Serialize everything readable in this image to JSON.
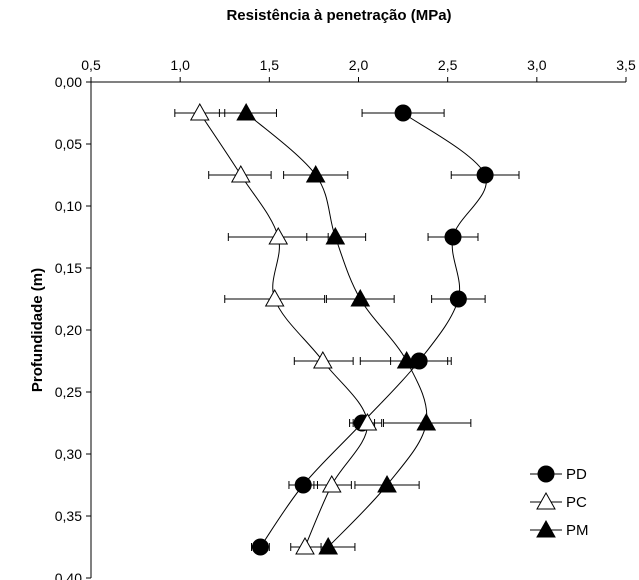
{
  "chart_data": {
    "type": "scatter",
    "title": "",
    "xlabel": "Resistência à penetração (MPa)",
    "ylabel": "Profundidade (m)",
    "xlim": [
      0.5,
      3.5
    ],
    "ylim": [
      0.0,
      0.4
    ],
    "x_ticks": [
      "0,5",
      "1,0",
      "1,5",
      "2,0",
      "2,5",
      "3,0",
      "3,5"
    ],
    "y_ticks": [
      "0,00",
      "0,05",
      "0,10",
      "0,15",
      "0,20",
      "0,25",
      "0,30",
      "0,35",
      "0,40"
    ],
    "x_axis_position": "top",
    "y_axis_inverted": true,
    "grid": false,
    "legend_position": "bottom-right",
    "colors": {
      "PD": "#000000",
      "PC": "#000000",
      "PM": "#000000"
    },
    "series": [
      {
        "name": "PD",
        "marker": "filled-circle",
        "points": [
          {
            "x": 2.25,
            "y": 0.025,
            "err_low": 2.02,
            "err_high": 2.48
          },
          {
            "x": 2.71,
            "y": 0.075,
            "err_low": 2.52,
            "err_high": 2.9
          },
          {
            "x": 2.53,
            "y": 0.125,
            "err_low": 2.39,
            "err_high": 2.67
          },
          {
            "x": 2.56,
            "y": 0.175,
            "err_low": 2.41,
            "err_high": 2.71
          },
          {
            "x": 2.34,
            "y": 0.225,
            "err_low": 2.18,
            "err_high": 2.5
          },
          {
            "x": 2.02,
            "y": 0.275,
            "err_low": 1.95,
            "err_high": 2.09
          },
          {
            "x": 1.69,
            "y": 0.325,
            "err_low": 1.61,
            "err_high": 1.77
          },
          {
            "x": 1.45,
            "y": 0.375,
            "err_low": 1.4,
            "err_high": 1.5
          }
        ]
      },
      {
        "name": "PC",
        "marker": "open-triangle",
        "points": [
          {
            "x": 1.11,
            "y": 0.025,
            "err_low": 0.97,
            "err_high": 1.25
          },
          {
            "x": 1.34,
            "y": 0.075,
            "err_low": 1.16,
            "err_high": 1.51
          },
          {
            "x": 1.55,
            "y": 0.125,
            "err_low": 1.27,
            "err_high": 1.83
          },
          {
            "x": 1.53,
            "y": 0.175,
            "err_low": 1.25,
            "err_high": 1.81
          },
          {
            "x": 1.8,
            "y": 0.225,
            "err_low": 1.64,
            "err_high": 1.97
          },
          {
            "x": 2.05,
            "y": 0.275,
            "err_low": 1.97,
            "err_high": 2.13
          },
          {
            "x": 1.85,
            "y": 0.325,
            "err_low": 1.75,
            "err_high": 1.96
          },
          {
            "x": 1.7,
            "y": 0.375,
            "err_low": 1.62,
            "err_high": 1.79
          }
        ]
      },
      {
        "name": "PM",
        "marker": "filled-triangle",
        "points": [
          {
            "x": 1.37,
            "y": 0.025,
            "err_low": 1.22,
            "err_high": 1.54
          },
          {
            "x": 1.76,
            "y": 0.075,
            "err_low": 1.58,
            "err_high": 1.94
          },
          {
            "x": 1.87,
            "y": 0.125,
            "err_low": 1.71,
            "err_high": 2.04
          },
          {
            "x": 2.01,
            "y": 0.175,
            "err_low": 1.82,
            "err_high": 2.2
          },
          {
            "x": 2.27,
            "y": 0.225,
            "err_low": 2.01,
            "err_high": 2.52
          },
          {
            "x": 2.38,
            "y": 0.275,
            "err_low": 2.14,
            "err_high": 2.63
          },
          {
            "x": 2.16,
            "y": 0.325,
            "err_low": 1.98,
            "err_high": 2.34
          },
          {
            "x": 1.83,
            "y": 0.375,
            "err_low": 1.69,
            "err_high": 1.98
          }
        ]
      }
    ]
  }
}
